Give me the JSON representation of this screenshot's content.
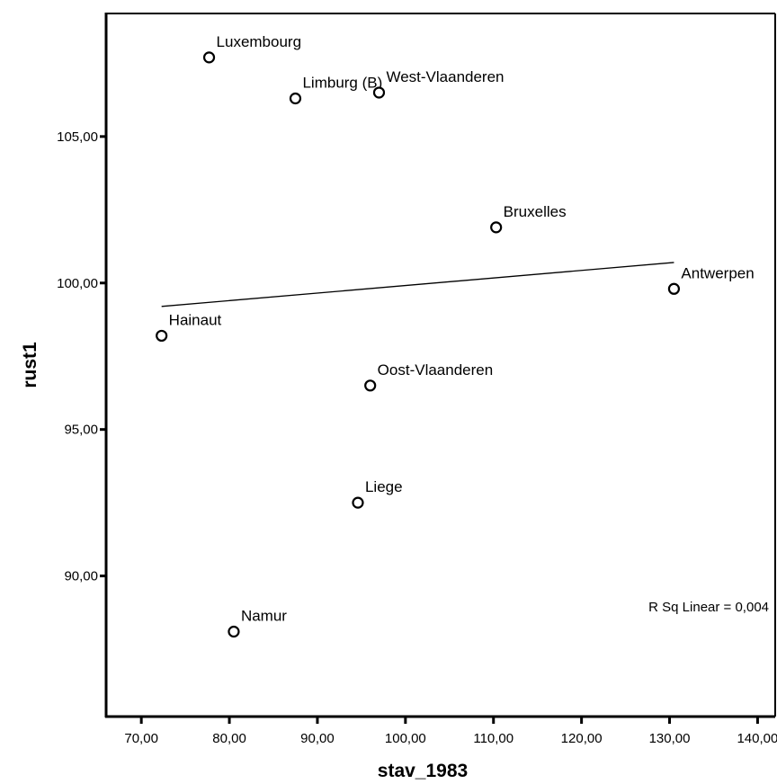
{
  "chart_data": {
    "type": "scatter",
    "xlabel": "stav_1983",
    "ylabel": "rust1",
    "xlim": [
      66,
      142
    ],
    "ylim": [
      85.2,
      109.2
    ],
    "xticks": [
      "70,00",
      "80,00",
      "90,00",
      "100,00",
      "110,00",
      "120,00",
      "130,00",
      "140,00"
    ],
    "xtick_values": [
      70,
      80,
      90,
      100,
      110,
      120,
      130,
      140
    ],
    "yticks": [
      "90,00",
      "95,00",
      "100,00",
      "105,00"
    ],
    "ytick_values": [
      90,
      95,
      100,
      105
    ],
    "points": [
      {
        "label": "Luxembourg",
        "x": 77.7,
        "y": 107.7
      },
      {
        "label": "Limburg (B)",
        "x": 87.5,
        "y": 106.3
      },
      {
        "label": "West-Vlaanderen",
        "x": 97.0,
        "y": 106.5
      },
      {
        "label": "Bruxelles",
        "x": 110.3,
        "y": 101.9
      },
      {
        "label": "Antwerpen",
        "x": 130.5,
        "y": 99.8
      },
      {
        "label": "Hainaut",
        "x": 72.3,
        "y": 98.2
      },
      {
        "label": "Oost-Vlaanderen",
        "x": 96.0,
        "y": 96.5
      },
      {
        "label": "Liege",
        "x": 94.6,
        "y": 92.5
      },
      {
        "label": "Namur",
        "x": 80.5,
        "y": 88.1
      }
    ],
    "fit_line": {
      "x": [
        72.3,
        130.5
      ],
      "y": [
        99.2,
        100.7
      ]
    },
    "annotation": "R Sq Linear = 0,004",
    "grid": false,
    "legend": "none"
  }
}
